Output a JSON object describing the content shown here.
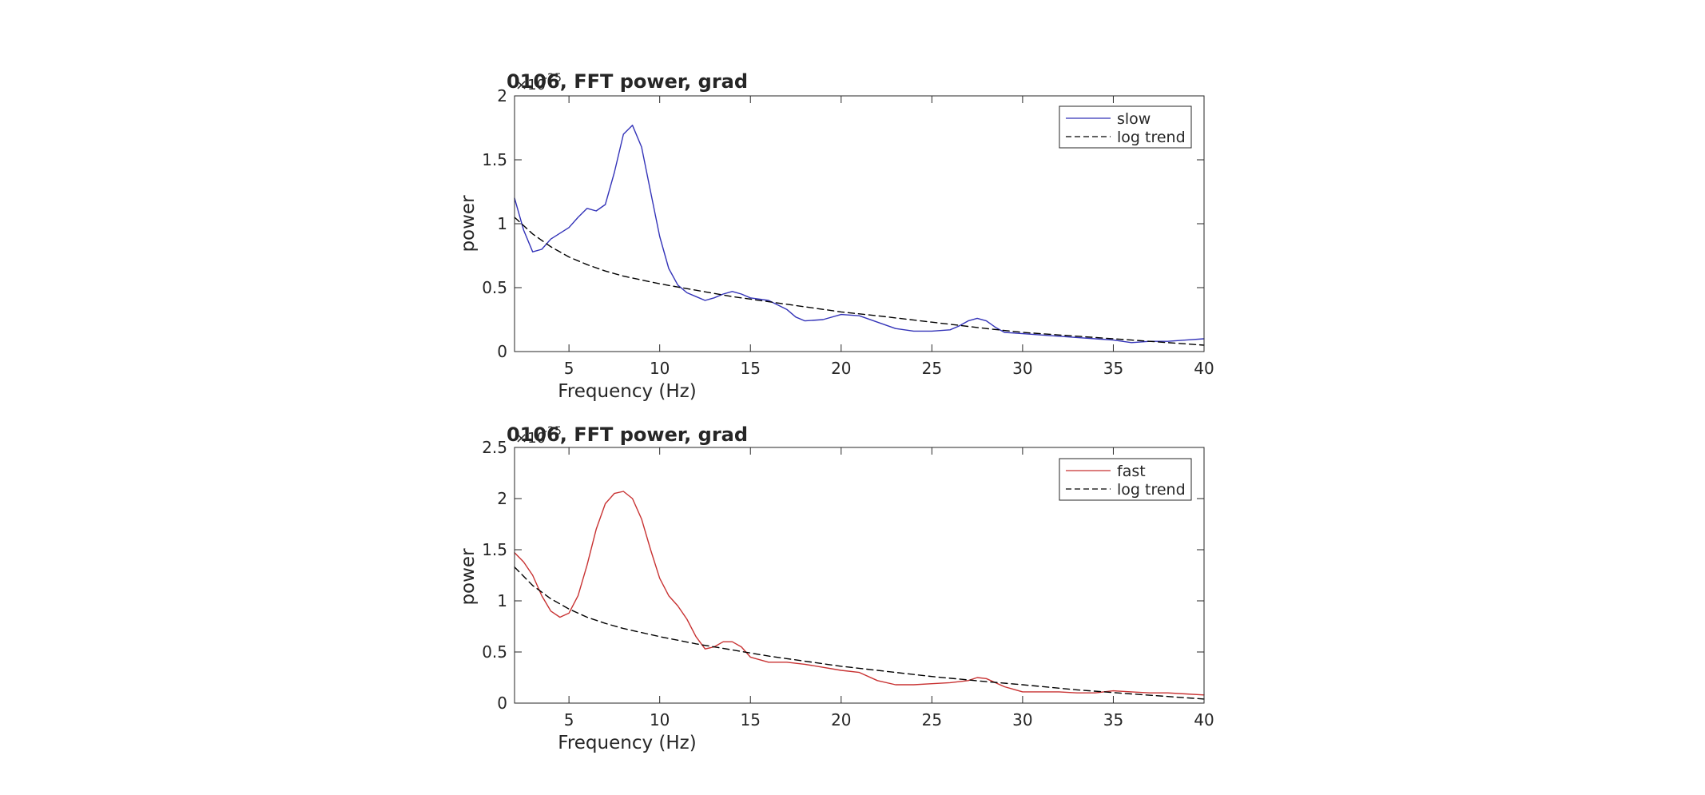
{
  "chart_data": [
    {
      "type": "line",
      "title": "0106, FFT power, grad",
      "xlabel": "Frequency (Hz)",
      "ylabel": "power",
      "xlim": [
        2,
        40
      ],
      "ylim": [
        0,
        2
      ],
      "y_exponent": "-25",
      "xticks": [
        5,
        10,
        15,
        20,
        25,
        30,
        35,
        40
      ],
      "yticks": [
        0,
        0.5,
        1,
        1.5,
        2
      ],
      "ytick_labels": [
        "0",
        "0.5",
        "1",
        "1.5",
        "2"
      ],
      "grid": false,
      "legend_position": "top-right",
      "series": [
        {
          "name": "slow",
          "color": "#3333b8",
          "style": "solid",
          "x": [
            2,
            2.5,
            3,
            3.5,
            4,
            5,
            5.5,
            6,
            6.5,
            7,
            7.5,
            8,
            8.5,
            9,
            9.5,
            10,
            10.5,
            11,
            11.5,
            12,
            12.5,
            13,
            13.5,
            14,
            14.5,
            15,
            16,
            17,
            17.5,
            18,
            19,
            20,
            21,
            22,
            23,
            24,
            25,
            26,
            26.5,
            27,
            27.5,
            28,
            28.5,
            29,
            30,
            31,
            32,
            33,
            34,
            35,
            36,
            37,
            38,
            39,
            40
          ],
          "values": [
            1.2,
            0.95,
            0.78,
            0.8,
            0.88,
            0.97,
            1.05,
            1.12,
            1.1,
            1.15,
            1.4,
            1.7,
            1.77,
            1.6,
            1.25,
            0.9,
            0.65,
            0.52,
            0.46,
            0.43,
            0.4,
            0.42,
            0.45,
            0.47,
            0.45,
            0.42,
            0.4,
            0.33,
            0.27,
            0.24,
            0.25,
            0.29,
            0.28,
            0.23,
            0.18,
            0.16,
            0.16,
            0.17,
            0.2,
            0.24,
            0.26,
            0.24,
            0.19,
            0.15,
            0.14,
            0.13,
            0.12,
            0.11,
            0.1,
            0.09,
            0.07,
            0.08,
            0.08,
            0.09,
            0.1
          ]
        },
        {
          "name": "log trend",
          "color": "#000000",
          "style": "dashed",
          "x": [
            2,
            3,
            4,
            5,
            6,
            7,
            8,
            9,
            10,
            12,
            14,
            16,
            18,
            20,
            22,
            25,
            28,
            30,
            33,
            36,
            40
          ],
          "values": [
            1.05,
            0.92,
            0.82,
            0.74,
            0.68,
            0.63,
            0.59,
            0.56,
            0.53,
            0.48,
            0.43,
            0.39,
            0.35,
            0.31,
            0.28,
            0.23,
            0.18,
            0.15,
            0.12,
            0.09,
            0.05
          ]
        }
      ]
    },
    {
      "type": "line",
      "title": "0106, FFT power, grad",
      "xlabel": "Frequency (Hz)",
      "ylabel": "power",
      "xlim": [
        2,
        40
      ],
      "ylim": [
        0,
        2.5
      ],
      "y_exponent": "-25",
      "xticks": [
        5,
        10,
        15,
        20,
        25,
        30,
        35,
        40
      ],
      "yticks": [
        0,
        0.5,
        1,
        1.5,
        2,
        2.5
      ],
      "ytick_labels": [
        "0",
        "0.5",
        "1",
        "1.5",
        "2",
        "2.5"
      ],
      "grid": false,
      "legend_position": "top-right",
      "series": [
        {
          "name": "fast",
          "color": "#c83232",
          "style": "solid",
          "x": [
            2,
            2.5,
            3,
            3.5,
            4,
            4.5,
            5,
            5.5,
            6,
            6.5,
            7,
            7.5,
            8,
            8.5,
            9,
            9.5,
            10,
            10.5,
            11,
            11.5,
            12,
            12.5,
            13,
            13.5,
            14,
            14.5,
            15,
            16,
            17,
            18,
            19,
            20,
            21,
            22,
            23,
            24,
            25,
            26,
            27,
            27.5,
            28,
            29,
            30,
            31,
            32,
            33,
            34,
            35,
            36,
            37,
            38,
            39,
            40
          ],
          "values": [
            1.47,
            1.38,
            1.25,
            1.05,
            0.9,
            0.84,
            0.88,
            1.05,
            1.35,
            1.7,
            1.95,
            2.05,
            2.07,
            2.0,
            1.8,
            1.5,
            1.22,
            1.05,
            0.95,
            0.82,
            0.65,
            0.53,
            0.55,
            0.6,
            0.6,
            0.55,
            0.45,
            0.4,
            0.4,
            0.38,
            0.35,
            0.32,
            0.3,
            0.22,
            0.18,
            0.18,
            0.19,
            0.2,
            0.22,
            0.25,
            0.24,
            0.16,
            0.11,
            0.11,
            0.11,
            0.1,
            0.1,
            0.12,
            0.11,
            0.1,
            0.1,
            0.09,
            0.08
          ]
        },
        {
          "name": "log trend",
          "color": "#000000",
          "style": "dashed",
          "x": [
            2,
            3,
            4,
            5,
            6,
            7,
            8,
            9,
            10,
            12,
            14,
            16,
            18,
            20,
            22,
            25,
            28,
            30,
            33,
            36,
            40
          ],
          "values": [
            1.33,
            1.15,
            1.02,
            0.92,
            0.84,
            0.78,
            0.73,
            0.69,
            0.65,
            0.58,
            0.52,
            0.46,
            0.41,
            0.36,
            0.32,
            0.26,
            0.21,
            0.18,
            0.13,
            0.09,
            0.04
          ]
        }
      ]
    }
  ]
}
